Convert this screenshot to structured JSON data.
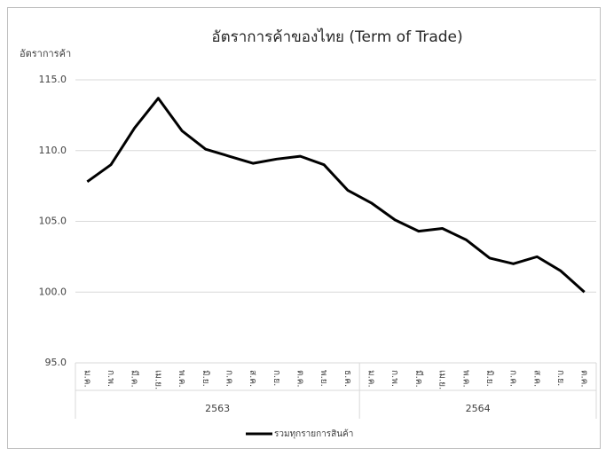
{
  "chart_data": {
    "type": "line",
    "title": "อัตราการค้าของไทย (Term of Trade)",
    "y_label": "อัตราการค้า",
    "groups": [
      {
        "label": "2563",
        "categories": [
          "ม.ค.",
          "ก.พ.",
          "มี.ค.",
          "เม.ย.",
          "พ.ค.",
          "มิ.ย.",
          "ก.ค.",
          "ส.ค.",
          "ก.ย.",
          "ต.ค.",
          "พ.ย.",
          "ธ.ค."
        ]
      },
      {
        "label": "2564",
        "categories": [
          "ม.ค.",
          "ก.พ.",
          "มี.ค.",
          "เม.ย.",
          "พ.ค.",
          "มิ.ย.",
          "ก.ค.",
          "ส.ค.",
          "ก.ย.",
          "ต.ค."
        ]
      }
    ],
    "series": [
      {
        "name": "รวมทุกรายการสินค้า",
        "color": "#000000",
        "values": [
          107.8,
          109.0,
          111.6,
          113.7,
          111.4,
          110.1,
          109.6,
          109.1,
          109.4,
          109.6,
          109.0,
          107.2,
          106.3,
          105.1,
          104.3,
          104.5,
          103.7,
          102.4,
          102.0,
          102.5,
          101.5,
          100.0
        ]
      }
    ],
    "ylim": [
      95,
      115
    ],
    "yticks": [
      {
        "value": 95,
        "label": "95.0"
      },
      {
        "value": 100,
        "label": "100.0"
      },
      {
        "value": 105,
        "label": "105.0"
      },
      {
        "value": 110,
        "label": "110.0"
      },
      {
        "value": 115,
        "label": "115.0"
      }
    ],
    "grid": true,
    "legend": "bottom"
  }
}
